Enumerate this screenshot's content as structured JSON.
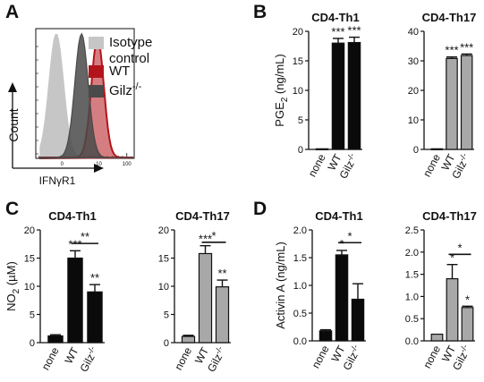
{
  "panel_letters": [
    "A",
    "B",
    "C",
    "D"
  ],
  "chart_data": [
    {
      "panel": "A",
      "type": "area",
      "title": "",
      "xlabel": "IFNγR1",
      "ylabel": "Count",
      "x_ticks": [
        "0",
        "10",
        "100"
      ],
      "legend_placement": "right",
      "series": [
        {
          "name": "Isotype control",
          "color": "#c6c6c6",
          "peak_x": 0.3
        },
        {
          "name": "WT",
          "color": "#b3141b",
          "peak_x": 9
        },
        {
          "name": "Gilz-/-",
          "color": "#4a4a4a",
          "peak_x": 2.4
        }
      ]
    },
    {
      "panel": "B",
      "type": "bar",
      "title": "CD4-Th1",
      "ylabel": "PGE2 (ng/mL)",
      "ylim": [
        0,
        20
      ],
      "yticks": [
        0,
        5,
        10,
        15,
        20
      ],
      "categories": [
        "none",
        "WT",
        "Gilz-/-"
      ],
      "values": [
        0.1,
        18.0,
        18.1
      ],
      "errors": [
        0,
        0.8,
        0.9
      ],
      "bar_color": "#0a0a0a",
      "stars": [
        "",
        "***",
        "***"
      ],
      "brackets": []
    },
    {
      "panel": "B",
      "type": "bar",
      "title": "CD4-Th17",
      "ylabel": "",
      "ylim": [
        0,
        40
      ],
      "yticks": [
        0,
        10,
        20,
        30,
        40
      ],
      "categories": [
        "none",
        "WT",
        "Gilz-/-"
      ],
      "values": [
        0.2,
        30.8,
        31.8
      ],
      "errors": [
        0,
        0.5,
        0.5
      ],
      "bar_color": "#a8a8a8",
      "stars": [
        "",
        "***",
        "***"
      ],
      "brackets": []
    },
    {
      "panel": "C",
      "type": "bar",
      "title": "CD4-Th1",
      "ylabel": "NO2 (µM)",
      "ylim": [
        0,
        20
      ],
      "yticks": [
        0,
        5,
        10,
        15,
        20
      ],
      "categories": [
        "none",
        "WT",
        "Gilz-/-"
      ],
      "values": [
        1.2,
        15.0,
        9.0
      ],
      "errors": [
        0.2,
        1.3,
        1.3
      ],
      "bar_color": "#0a0a0a",
      "stars": [
        "",
        "***",
        "**"
      ],
      "brackets": [
        {
          "from": 1,
          "to": 2,
          "y": 17.6,
          "label": "**"
        }
      ]
    },
    {
      "panel": "C",
      "type": "bar",
      "title": "CD4-Th17",
      "ylabel": "",
      "ylim": [
        0,
        20
      ],
      "yticks": [
        0,
        5,
        10,
        15,
        20
      ],
      "categories": [
        "none",
        "WT",
        "Gilz-/-"
      ],
      "values": [
        1.1,
        15.8,
        9.9
      ],
      "errors": [
        0.2,
        1.4,
        1.2
      ],
      "bar_color": "#a8a8a8",
      "stars": [
        "",
        "***",
        "**"
      ],
      "brackets": [
        {
          "from": 1,
          "to": 2,
          "y": 17.8,
          "label": "*"
        }
      ]
    },
    {
      "panel": "D",
      "type": "bar",
      "title": "CD4-Th1",
      "ylabel": "Activin A (ng/mL)",
      "ylim": [
        0,
        2.0
      ],
      "yticks": [
        0.0,
        0.5,
        1.0,
        1.5,
        2.0
      ],
      "categories": [
        "none",
        "WT",
        "Gilz-/-"
      ],
      "values": [
        0.18,
        1.55,
        0.75
      ],
      "errors": [
        0.02,
        0.08,
        0.28
      ],
      "bar_color": "#0a0a0a",
      "stars": [
        "",
        "*",
        ""
      ],
      "brackets": [
        {
          "from": 1,
          "to": 2,
          "y": 1.77,
          "label": "*"
        }
      ]
    },
    {
      "panel": "D",
      "type": "bar",
      "title": "CD4-Th17",
      "ylabel": "",
      "ylim": [
        0,
        2.5
      ],
      "yticks": [
        0.0,
        0.5,
        1.0,
        1.5,
        2.0,
        2.5
      ],
      "categories": [
        "none",
        "WT",
        "Gilz-/-"
      ],
      "values": [
        0.15,
        1.4,
        0.75
      ],
      "errors": [
        0.0,
        0.32,
        0.03
      ],
      "bar_color": "#a8a8a8",
      "stars": [
        "",
        "*",
        "*"
      ],
      "brackets": [
        {
          "from": 1,
          "to": 2,
          "y": 1.95,
          "label": "*"
        }
      ]
    }
  ]
}
